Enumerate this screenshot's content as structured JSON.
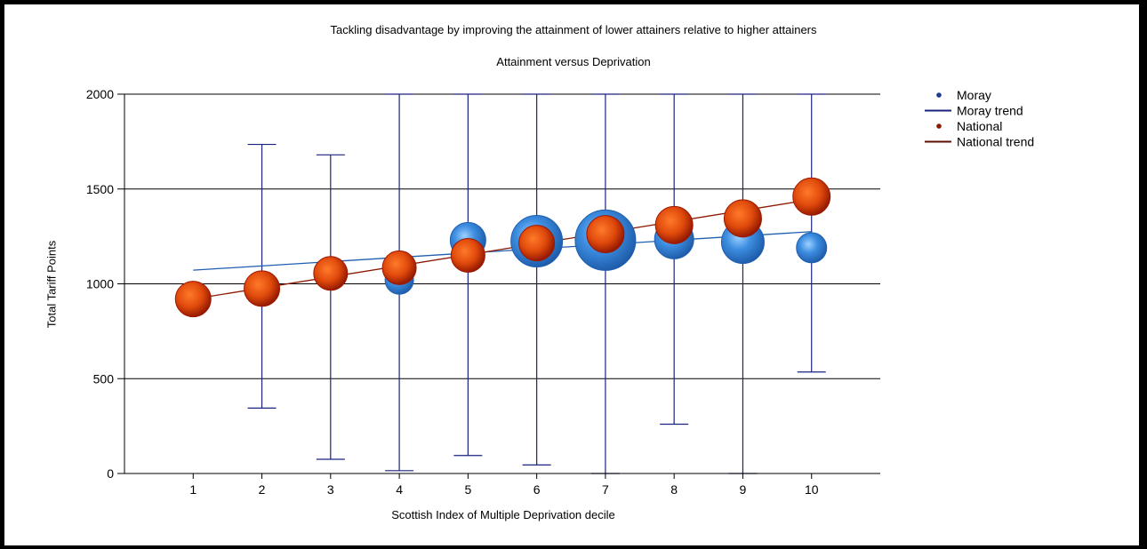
{
  "chart_data": {
    "type": "scatter",
    "title": "Tackling disadvantage by improving the attainment of lower attainers relative to higher attainers",
    "subtitle": "Attainment versus Deprivation",
    "xlabel": "Scottish Index of Multiple Deprivation decile",
    "ylabel": "Total Tariff Points",
    "x_ticks": [
      "1",
      "2",
      "3",
      "4",
      "5",
      "6",
      "7",
      "8",
      "9",
      "10"
    ],
    "xlim": [
      0,
      11
    ],
    "y_ticks": [
      "0",
      "500",
      "1000",
      "1500",
      "2000"
    ],
    "ylim": [
      0,
      2000
    ],
    "grid": "horizontal",
    "legend_position": "top-right",
    "legend": [
      {
        "label": "Moray",
        "kind": "marker",
        "color": "#1f3a93"
      },
      {
        "label": "Moray trend",
        "kind": "line",
        "color": "#1a237e"
      },
      {
        "label": "National",
        "kind": "marker",
        "color": "#8b1a00"
      },
      {
        "label": "National trend",
        "kind": "line",
        "color": "#5c0d00"
      }
    ],
    "series": [
      {
        "name": "Moray",
        "color": "#3d8de0",
        "edge": "#1f5fb0",
        "points": [
          {
            "x": 4,
            "y": 1020,
            "r": 16
          },
          {
            "x": 5,
            "y": 1230,
            "r": 20
          },
          {
            "x": 6,
            "y": 1225,
            "r": 29
          },
          {
            "x": 7,
            "y": 1230,
            "r": 34
          },
          {
            "x": 8,
            "y": 1235,
            "r": 22
          },
          {
            "x": 9,
            "y": 1220,
            "r": 24
          },
          {
            "x": 10,
            "y": 1190,
            "r": 17
          }
        ]
      },
      {
        "name": "National",
        "color": "#e04a0c",
        "edge": "#9e1800",
        "points": [
          {
            "x": 1,
            "y": 920,
            "r": 20
          },
          {
            "x": 2,
            "y": 975,
            "r": 20
          },
          {
            "x": 3,
            "y": 1055,
            "r": 19
          },
          {
            "x": 4,
            "y": 1085,
            "r": 19
          },
          {
            "x": 5,
            "y": 1150,
            "r": 19
          },
          {
            "x": 6,
            "y": 1215,
            "r": 20
          },
          {
            "x": 7,
            "y": 1262,
            "r": 21
          },
          {
            "x": 8,
            "y": 1310,
            "r": 21
          },
          {
            "x": 9,
            "y": 1345,
            "r": 21
          },
          {
            "x": 10,
            "y": 1460,
            "r": 21
          }
        ]
      }
    ],
    "trends": [
      {
        "name": "Moray trend",
        "color": "#1f5fb0",
        "from": [
          1,
          1072
        ],
        "to": [
          10,
          1275
        ]
      },
      {
        "name": "National trend",
        "color": "#8b1a00",
        "from": [
          1,
          920
        ],
        "to": [
          10,
          1445
        ]
      }
    ],
    "error_bars": {
      "color": "#1a237e",
      "bars": [
        {
          "x": 2,
          "low": 345,
          "high": 1735
        },
        {
          "x": 3,
          "low": 75,
          "high": 1680
        },
        {
          "x": 4,
          "low": 15,
          "high": 2000
        },
        {
          "x": 5,
          "low": 95,
          "high": 2000
        },
        {
          "x": 6,
          "low": 45,
          "high": 2000
        },
        {
          "x": 7,
          "low": 0,
          "high": 2000
        },
        {
          "x": 8,
          "low": 260,
          "high": 2000
        },
        {
          "x": 9,
          "low": 0,
          "high": 2000
        },
        {
          "x": 10,
          "low": 535,
          "high": 2000
        }
      ]
    }
  }
}
